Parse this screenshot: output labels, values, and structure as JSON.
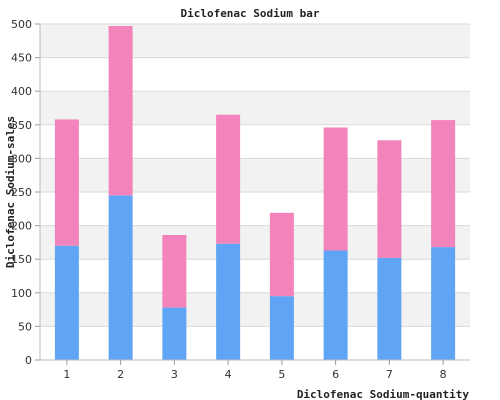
{
  "chart_data": {
    "type": "bar",
    "stacked": true,
    "title": "Diclofenac Sodium bar",
    "xlabel": "Diclofenac Sodium-quantity",
    "ylabel": "Diclofenac Sodium-sales",
    "categories": [
      "1",
      "2",
      "3",
      "4",
      "5",
      "6",
      "7",
      "8"
    ],
    "series": [
      {
        "color": "#60a5f5",
        "values": [
          170,
          245,
          78,
          173,
          95,
          163,
          152,
          168
        ]
      },
      {
        "color": "#f283bb",
        "values": [
          188,
          252,
          108,
          192,
          124,
          183,
          175,
          189
        ]
      }
    ],
    "ylim": [
      0,
      500
    ],
    "yticks": [
      0,
      50,
      100,
      150,
      200,
      250,
      300,
      350,
      400,
      450,
      500
    ],
    "grid": true,
    "band_color": "#f2f2f2",
    "grid_color": "#d9d9d9"
  }
}
